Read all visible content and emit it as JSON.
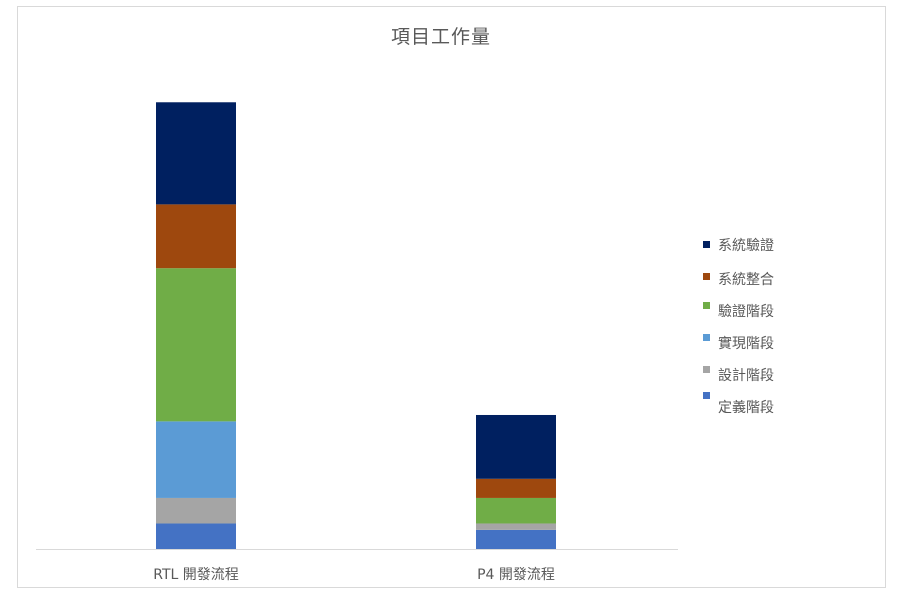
{
  "chart_data": {
    "type": "bar",
    "stacked": true,
    "title": "項目工作量",
    "categories": [
      "RTL 開發流程",
      "P4 開發流程"
    ],
    "series": [
      {
        "name": "定義階段",
        "color": "#4472c4",
        "values": [
          6,
          4.5
        ]
      },
      {
        "name": "設計階段",
        "color": "#a5a5a5",
        "values": [
          6,
          1.5
        ]
      },
      {
        "name": "實現階段",
        "color": "#5b9bd5",
        "values": [
          18,
          0
        ]
      },
      {
        "name": "驗證階段",
        "color": "#70ad47",
        "values": [
          36,
          6
        ]
      },
      {
        "name": "系統整合",
        "color": "#9e480e",
        "values": [
          15,
          4.5
        ]
      },
      {
        "name": "系統驗證",
        "color": "#002060",
        "values": [
          24,
          15
        ]
      }
    ],
    "ylim": [
      0,
      110
    ],
    "grid": false,
    "legend_position": "right",
    "legend_labels": [
      "系統驗證",
      "系統整合",
      "驗證階段",
      "實現階段",
      "設計階段",
      "定義階段"
    ],
    "legend_colors": [
      "#002060",
      "#9e480e",
      "#70ad47",
      "#5b9bd5",
      "#a5a5a5",
      "#4472c4"
    ]
  }
}
